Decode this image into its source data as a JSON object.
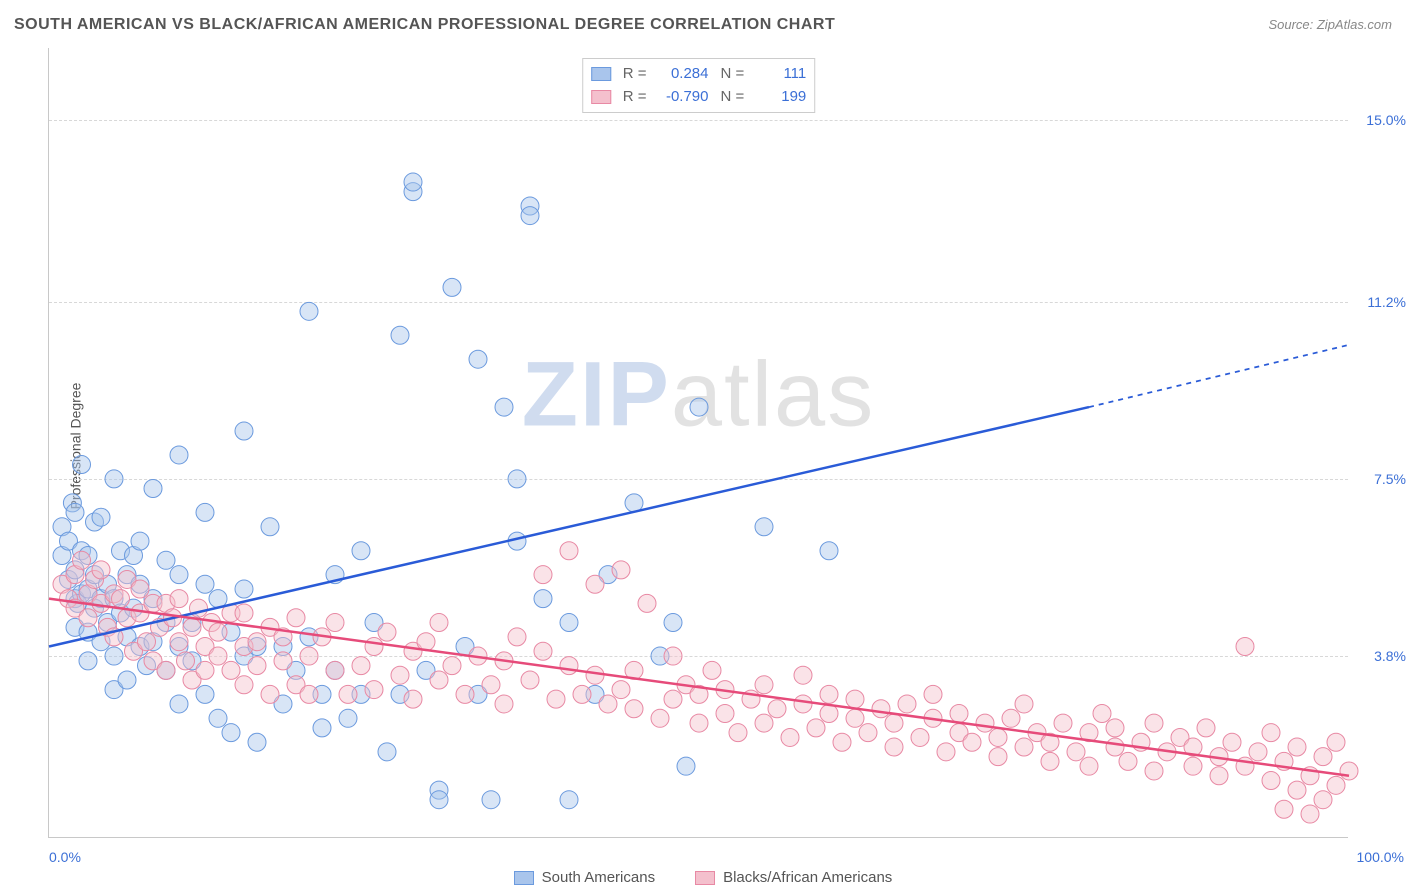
{
  "title": "SOUTH AMERICAN VS BLACK/AFRICAN AMERICAN PROFESSIONAL DEGREE CORRELATION CHART",
  "source_label": "Source: ",
  "source_value": "ZipAtlas.com",
  "ylabel": "Professional Degree",
  "watermark_a": "ZIP",
  "watermark_b": "atlas",
  "chart": {
    "type": "scatter-correlation",
    "background_color": "#ffffff",
    "grid_color": "#d8d8d8",
    "axis_color": "#c8c8c8",
    "text_color": "#555555",
    "value_color": "#3b6fd6",
    "xlim": [
      0,
      100
    ],
    "ylim": [
      0,
      16.5
    ],
    "xticks": [
      {
        "pos": 0,
        "label": "0.0%"
      },
      {
        "pos": 100,
        "label": "100.0%"
      }
    ],
    "yticks": [
      {
        "pos": 3.8,
        "label": "3.8%"
      },
      {
        "pos": 7.5,
        "label": "7.5%"
      },
      {
        "pos": 11.2,
        "label": "11.2%"
      },
      {
        "pos": 15.0,
        "label": "15.0%"
      }
    ],
    "marker_radius": 9,
    "marker_opacity": 0.45,
    "line_width": 2.5,
    "series": [
      {
        "id": "south_americans",
        "label": "South Americans",
        "R": "0.284",
        "N": "111",
        "color_fill": "#a9c5ec",
        "color_stroke": "#6b9ade",
        "line_color": "#2a5bd7",
        "trend": {
          "x1": 0,
          "y1": 4.0,
          "x2": 80,
          "y2": 9.0,
          "x2_ext": 100,
          "y2_ext": 10.3
        },
        "points": [
          [
            1,
            6.5
          ],
          [
            1,
            5.9
          ],
          [
            1.5,
            6.2
          ],
          [
            1.5,
            5.4
          ],
          [
            1.8,
            7.0
          ],
          [
            2,
            6.8
          ],
          [
            2,
            5.0
          ],
          [
            2,
            4.4
          ],
          [
            2,
            5.6
          ],
          [
            2.2,
            4.9
          ],
          [
            2.5,
            7.8
          ],
          [
            2.5,
            6.0
          ],
          [
            2.5,
            5.1
          ],
          [
            3,
            5.9
          ],
          [
            3,
            5.2
          ],
          [
            3,
            4.3
          ],
          [
            3,
            3.7
          ],
          [
            3.5,
            6.6
          ],
          [
            3.5,
            5.5
          ],
          [
            3.5,
            4.8
          ],
          [
            4,
            5.0
          ],
          [
            4,
            4.1
          ],
          [
            4,
            6.7
          ],
          [
            4.5,
            5.3
          ],
          [
            4.5,
            4.5
          ],
          [
            5,
            7.5
          ],
          [
            5,
            5.0
          ],
          [
            5,
            3.8
          ],
          [
            5,
            3.1
          ],
          [
            5.5,
            6.0
          ],
          [
            5.5,
            4.7
          ],
          [
            6,
            5.5
          ],
          [
            6,
            4.2
          ],
          [
            6,
            3.3
          ],
          [
            6.5,
            5.9
          ],
          [
            6.5,
            4.8
          ],
          [
            7,
            4.0
          ],
          [
            7,
            5.3
          ],
          [
            7,
            6.2
          ],
          [
            7.5,
            3.6
          ],
          [
            8,
            5.0
          ],
          [
            8,
            4.1
          ],
          [
            8,
            7.3
          ],
          [
            9,
            4.5
          ],
          [
            9,
            3.5
          ],
          [
            9,
            5.8
          ],
          [
            10,
            4.0
          ],
          [
            10,
            2.8
          ],
          [
            10,
            5.5
          ],
          [
            10,
            8.0
          ],
          [
            11,
            4.5
          ],
          [
            11,
            3.7
          ],
          [
            12,
            5.3
          ],
          [
            12,
            3.0
          ],
          [
            12,
            6.8
          ],
          [
            13,
            2.5
          ],
          [
            13,
            5.0
          ],
          [
            14,
            4.3
          ],
          [
            14,
            2.2
          ],
          [
            15,
            3.8
          ],
          [
            15,
            5.2
          ],
          [
            15,
            8.5
          ],
          [
            16,
            4.0
          ],
          [
            16,
            2.0
          ],
          [
            17,
            6.5
          ],
          [
            18,
            4.0
          ],
          [
            18,
            2.8
          ],
          [
            19,
            3.5
          ],
          [
            20,
            11.0
          ],
          [
            20,
            4.2
          ],
          [
            21,
            3.0
          ],
          [
            21,
            2.3
          ],
          [
            22,
            5.5
          ],
          [
            22,
            3.5
          ],
          [
            23,
            2.5
          ],
          [
            24,
            6.0
          ],
          [
            24,
            3.0
          ],
          [
            25,
            4.5
          ],
          [
            26,
            1.8
          ],
          [
            27,
            3.0
          ],
          [
            28,
            13.5
          ],
          [
            28,
            13.7
          ],
          [
            27,
            10.5
          ],
          [
            29,
            3.5
          ],
          [
            30,
            1.0
          ],
          [
            30,
            0.8
          ],
          [
            31,
            11.5
          ],
          [
            32,
            4.0
          ],
          [
            33,
            3.0
          ],
          [
            33,
            10.0
          ],
          [
            34,
            0.8
          ],
          [
            35,
            9.0
          ],
          [
            36,
            6.2
          ],
          [
            36,
            7.5
          ],
          [
            37,
            13.2
          ],
          [
            37,
            13.0
          ],
          [
            38,
            5.0
          ],
          [
            40,
            4.5
          ],
          [
            40,
            0.8
          ],
          [
            42,
            3.0
          ],
          [
            43,
            5.5
          ],
          [
            45,
            7.0
          ],
          [
            47,
            3.8
          ],
          [
            48,
            4.5
          ],
          [
            49,
            1.5
          ],
          [
            50,
            9.0
          ],
          [
            55,
            6.5
          ],
          [
            60,
            6.0
          ]
        ]
      },
      {
        "id": "blacks_african_americans",
        "label": "Blacks/African Americans",
        "R": "-0.790",
        "N": "199",
        "color_fill": "#f4c0cd",
        "color_stroke": "#e889a4",
        "line_color": "#e64b7a",
        "trend": {
          "x1": 0,
          "y1": 5.0,
          "x2": 100,
          "y2": 1.3,
          "x2_ext": 100,
          "y2_ext": 1.3
        },
        "points": [
          [
            1,
            5.3
          ],
          [
            1.5,
            5.0
          ],
          [
            2,
            4.8
          ],
          [
            2,
            5.5
          ],
          [
            2.5,
            5.8
          ],
          [
            3,
            5.1
          ],
          [
            3,
            4.6
          ],
          [
            3.5,
            5.4
          ],
          [
            4,
            4.9
          ],
          [
            4,
            5.6
          ],
          [
            4.5,
            4.4
          ],
          [
            5,
            5.1
          ],
          [
            5,
            4.2
          ],
          [
            5.5,
            5.0
          ],
          [
            6,
            4.6
          ],
          [
            6,
            5.4
          ],
          [
            6.5,
            3.9
          ],
          [
            7,
            4.7
          ],
          [
            7,
            5.2
          ],
          [
            7.5,
            4.1
          ],
          [
            8,
            4.9
          ],
          [
            8,
            3.7
          ],
          [
            8.5,
            4.4
          ],
          [
            9,
            4.9
          ],
          [
            9,
            3.5
          ],
          [
            9.5,
            4.6
          ],
          [
            10,
            4.1
          ],
          [
            10,
            5.0
          ],
          [
            10.5,
            3.7
          ],
          [
            11,
            4.4
          ],
          [
            11,
            3.3
          ],
          [
            11.5,
            4.8
          ],
          [
            12,
            4.0
          ],
          [
            12,
            3.5
          ],
          [
            12.5,
            4.5
          ],
          [
            13,
            3.8
          ],
          [
            13,
            4.3
          ],
          [
            14,
            3.5
          ],
          [
            14,
            4.7
          ],
          [
            15,
            3.2
          ],
          [
            15,
            4.0
          ],
          [
            15,
            4.7
          ],
          [
            16,
            3.6
          ],
          [
            16,
            4.1
          ],
          [
            17,
            3.0
          ],
          [
            17,
            4.4
          ],
          [
            18,
            3.7
          ],
          [
            18,
            4.2
          ],
          [
            19,
            3.2
          ],
          [
            19,
            4.6
          ],
          [
            20,
            3.8
          ],
          [
            20,
            3.0
          ],
          [
            21,
            4.2
          ],
          [
            22,
            3.5
          ],
          [
            22,
            4.5
          ],
          [
            23,
            3.0
          ],
          [
            24,
            3.6
          ],
          [
            25,
            4.0
          ],
          [
            25,
            3.1
          ],
          [
            26,
            4.3
          ],
          [
            27,
            3.4
          ],
          [
            28,
            3.9
          ],
          [
            28,
            2.9
          ],
          [
            29,
            4.1
          ],
          [
            30,
            3.3
          ],
          [
            30,
            4.5
          ],
          [
            31,
            3.6
          ],
          [
            32,
            3.0
          ],
          [
            33,
            3.8
          ],
          [
            34,
            3.2
          ],
          [
            35,
            3.7
          ],
          [
            35,
            2.8
          ],
          [
            36,
            4.2
          ],
          [
            37,
            3.3
          ],
          [
            38,
            3.9
          ],
          [
            38,
            5.5
          ],
          [
            39,
            2.9
          ],
          [
            40,
            3.6
          ],
          [
            40,
            6.0
          ],
          [
            41,
            3.0
          ],
          [
            42,
            3.4
          ],
          [
            42,
            5.3
          ],
          [
            43,
            2.8
          ],
          [
            44,
            3.1
          ],
          [
            44,
            5.6
          ],
          [
            45,
            2.7
          ],
          [
            45,
            3.5
          ],
          [
            46,
            4.9
          ],
          [
            47,
            2.5
          ],
          [
            48,
            3.8
          ],
          [
            48,
            2.9
          ],
          [
            49,
            3.2
          ],
          [
            50,
            2.4
          ],
          [
            50,
            3.0
          ],
          [
            51,
            3.5
          ],
          [
            52,
            2.6
          ],
          [
            52,
            3.1
          ],
          [
            53,
            2.2
          ],
          [
            54,
            2.9
          ],
          [
            55,
            2.4
          ],
          [
            55,
            3.2
          ],
          [
            56,
            2.7
          ],
          [
            57,
            2.1
          ],
          [
            58,
            2.8
          ],
          [
            58,
            3.4
          ],
          [
            59,
            2.3
          ],
          [
            60,
            2.6
          ],
          [
            60,
            3.0
          ],
          [
            61,
            2.0
          ],
          [
            62,
            2.5
          ],
          [
            62,
            2.9
          ],
          [
            63,
            2.2
          ],
          [
            64,
            2.7
          ],
          [
            65,
            1.9
          ],
          [
            65,
            2.4
          ],
          [
            66,
            2.8
          ],
          [
            67,
            2.1
          ],
          [
            68,
            2.5
          ],
          [
            68,
            3.0
          ],
          [
            69,
            1.8
          ],
          [
            70,
            2.2
          ],
          [
            70,
            2.6
          ],
          [
            71,
            2.0
          ],
          [
            72,
            2.4
          ],
          [
            73,
            1.7
          ],
          [
            73,
            2.1
          ],
          [
            74,
            2.5
          ],
          [
            75,
            1.9
          ],
          [
            75,
            2.8
          ],
          [
            76,
            2.2
          ],
          [
            77,
            1.6
          ],
          [
            77,
            2.0
          ],
          [
            78,
            2.4
          ],
          [
            79,
            1.8
          ],
          [
            80,
            2.2
          ],
          [
            80,
            1.5
          ],
          [
            81,
            2.6
          ],
          [
            82,
            1.9
          ],
          [
            82,
            2.3
          ],
          [
            83,
            1.6
          ],
          [
            84,
            2.0
          ],
          [
            85,
            1.4
          ],
          [
            85,
            2.4
          ],
          [
            86,
            1.8
          ],
          [
            87,
            2.1
          ],
          [
            88,
            1.5
          ],
          [
            88,
            1.9
          ],
          [
            89,
            2.3
          ],
          [
            90,
            1.3
          ],
          [
            90,
            1.7
          ],
          [
            91,
            2.0
          ],
          [
            92,
            1.5
          ],
          [
            92,
            4.0
          ],
          [
            93,
            1.8
          ],
          [
            94,
            1.2
          ],
          [
            94,
            2.2
          ],
          [
            95,
            1.6
          ],
          [
            95,
            0.6
          ],
          [
            96,
            1.0
          ],
          [
            96,
            1.9
          ],
          [
            97,
            1.3
          ],
          [
            97,
            0.5
          ],
          [
            98,
            1.7
          ],
          [
            98,
            0.8
          ],
          [
            99,
            1.1
          ],
          [
            99,
            2.0
          ],
          [
            100,
            1.4
          ]
        ]
      }
    ]
  },
  "stats_labels": {
    "R": "R =",
    "N": "N ="
  }
}
